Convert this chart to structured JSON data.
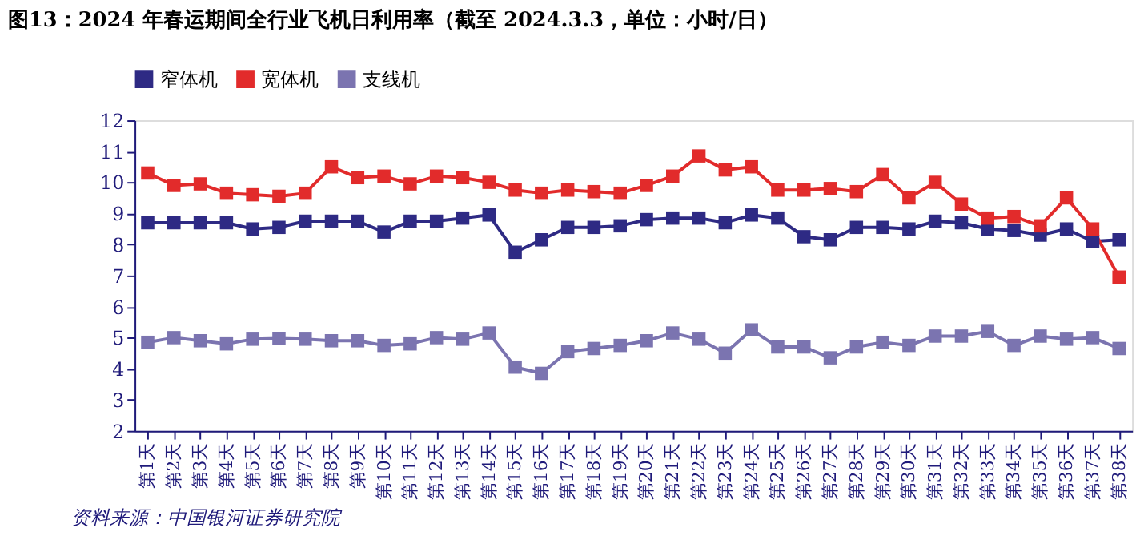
{
  "chart_data": {
    "type": "line",
    "title": "图13：2024 年春运期间全行业飞机日利用率（截至 2024.3.3，单位：小时/日）",
    "categories": [
      "第1天",
      "第2天",
      "第3天",
      "第4天",
      "第5天",
      "第6天",
      "第7天",
      "第8天",
      "第9天",
      "第10天",
      "第11天",
      "第12天",
      "第13天",
      "第14天",
      "第15天",
      "第16天",
      "第17天",
      "第18天",
      "第19天",
      "第20天",
      "第21天",
      "第22天",
      "第23天",
      "第24天",
      "第25天",
      "第26天",
      "第27天",
      "第28天",
      "第29天",
      "第30天",
      "第31天",
      "第32天",
      "第33天",
      "第34天",
      "第35天",
      "第36天",
      "第37天",
      "第38天"
    ],
    "series": [
      {
        "name": "窄体机",
        "color": "#2e2a84",
        "values": [
          8.7,
          8.7,
          8.7,
          8.7,
          8.5,
          8.55,
          8.75,
          8.75,
          8.75,
          8.4,
          8.75,
          8.75,
          8.85,
          8.95,
          7.75,
          8.15,
          8.55,
          8.55,
          8.6,
          8.8,
          8.85,
          8.85,
          8.7,
          8.95,
          8.85,
          8.25,
          8.15,
          8.55,
          8.55,
          8.5,
          8.75,
          8.7,
          8.5,
          8.45,
          8.3,
          8.5,
          8.1,
          8.15
        ]
      },
      {
        "name": "宽体机",
        "color": "#e22b2b",
        "values": [
          10.3,
          9.9,
          9.95,
          9.65,
          9.6,
          9.55,
          9.65,
          10.5,
          10.15,
          10.2,
          9.95,
          10.2,
          10.15,
          10.0,
          9.75,
          9.65,
          9.75,
          9.7,
          9.65,
          9.9,
          10.2,
          10.85,
          10.4,
          10.5,
          9.75,
          9.75,
          9.8,
          9.7,
          10.25,
          9.5,
          10.0,
          9.3,
          8.85,
          8.9,
          8.6,
          9.5,
          8.5,
          6.95
        ]
      },
      {
        "name": "支线机",
        "color": "#7b74b0",
        "values": [
          4.85,
          5.0,
          4.9,
          4.8,
          4.95,
          4.97,
          4.95,
          4.9,
          4.9,
          4.75,
          4.8,
          5.0,
          4.95,
          5.15,
          4.05,
          3.85,
          4.55,
          4.65,
          4.75,
          4.9,
          5.15,
          4.95,
          4.5,
          5.25,
          4.7,
          4.7,
          4.35,
          4.7,
          4.85,
          4.75,
          5.05,
          5.05,
          5.2,
          4.75,
          5.05,
          4.95,
          5.0,
          4.65
        ]
      }
    ],
    "ylim": [
      2,
      12
    ],
    "yticks": [
      2,
      3,
      4,
      5,
      6,
      7,
      8,
      9,
      10,
      11,
      12
    ],
    "grid": false,
    "legend": "top",
    "marker": "square",
    "line_style": "solid",
    "annotations": [
      "资料来源：中国银河证券研究院"
    ]
  }
}
